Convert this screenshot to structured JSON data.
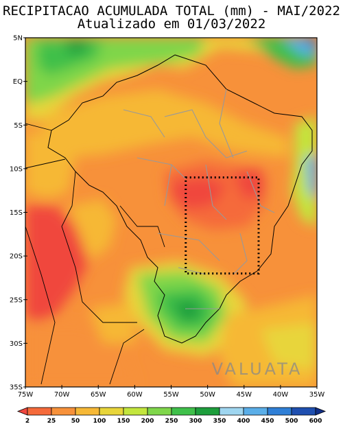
{
  "title": {
    "line1": "RECIPITACAO ACUMULADA TOTAL (mm) - MAI/2022",
    "line2": "Atualizado em 01/03/2022"
  },
  "axes": {
    "lat_ticks": [
      "5N",
      "EQ",
      "5S",
      "10S",
      "15S",
      "20S",
      "25S",
      "30S",
      "35S"
    ],
    "lon_ticks": [
      "75W",
      "70W",
      "65W",
      "60W",
      "55W",
      "50W",
      "45W",
      "40W",
      "35W"
    ]
  },
  "watermark": "VALUATA",
  "colorbar": {
    "labels": [
      "2",
      "25",
      "50",
      "100",
      "150",
      "200",
      "250",
      "300",
      "350",
      "400",
      "450",
      "500",
      "600"
    ],
    "colors": [
      "#f0463e",
      "#f56a3a",
      "#f7913a",
      "#f6b836",
      "#e8d53a",
      "#c3e63d",
      "#7fd64a",
      "#3fc04a",
      "#1d9e3c",
      "#9fd6f0",
      "#5aaee8",
      "#2f7fd6",
      "#1f4fb0",
      "#112f88"
    ]
  },
  "region_box": {
    "lon_west": -53,
    "lon_east": -43,
    "lat_north": -11,
    "lat_south": -22
  }
}
